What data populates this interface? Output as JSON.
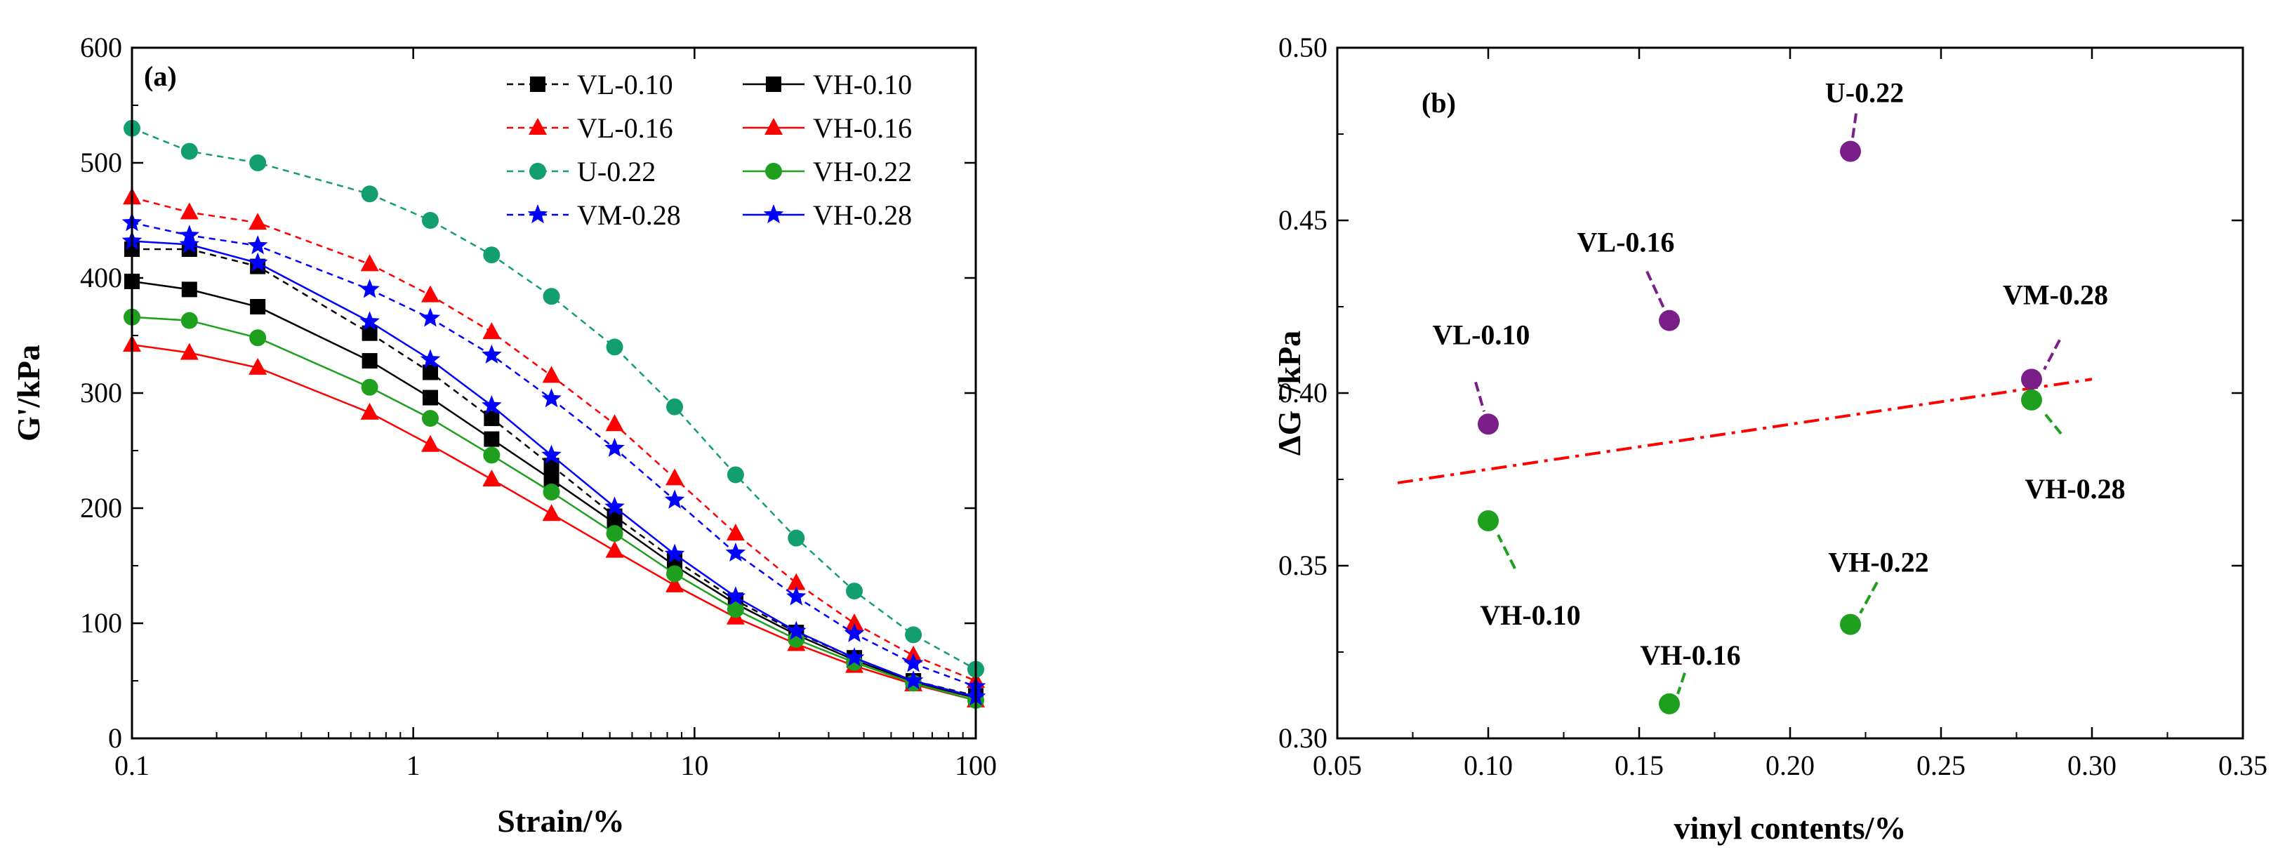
{
  "chart_data": [
    {
      "type": "line",
      "panel_label": "(a)",
      "xscale": "log",
      "xlabel": "Strain/%",
      "ylabel": "G'/kPa",
      "xlim": [
        0.1,
        100
      ],
      "ylim": [
        0,
        600
      ],
      "xticks": [
        0.1,
        1,
        10,
        100
      ],
      "xtick_labels": [
        "0.1",
        "1",
        "10",
        "100"
      ],
      "yticks": [
        0,
        100,
        200,
        300,
        400,
        500,
        600
      ],
      "ytick_labels": [
        "0",
        "100",
        "200",
        "300",
        "400",
        "500",
        "600"
      ],
      "x": [
        0.1,
        0.16,
        0.28,
        0.7,
        1.15,
        1.9,
        3.1,
        5.2,
        8.5,
        14,
        23,
        37,
        60,
        100
      ],
      "series": [
        {
          "name": "VL-0.10",
          "color": "#000000",
          "dash": "dashed",
          "marker": "square",
          "values": [
            425,
            425,
            410,
            352,
            318,
            278,
            237,
            193,
            155,
            120,
            92,
            70,
            50,
            37
          ]
        },
        {
          "name": "VH-0.10",
          "color": "#000000",
          "dash": "solid",
          "marker": "square",
          "values": [
            397,
            390,
            375,
            328,
            296,
            260,
            225,
            187,
            150,
            117,
            90,
            68,
            49,
            35
          ]
        },
        {
          "name": "VL-0.16",
          "color": "#ff0000",
          "dash": "dashed",
          "marker": "triangle",
          "values": [
            470,
            457,
            448,
            412,
            385,
            353,
            315,
            273,
            226,
            178,
            135,
            100,
            72,
            50
          ]
        },
        {
          "name": "VH-0.16",
          "color": "#ff0000",
          "dash": "solid",
          "marker": "triangle",
          "values": [
            342,
            335,
            322,
            283,
            255,
            225,
            195,
            163,
            133,
            105,
            82,
            63,
            47,
            33
          ]
        },
        {
          "name": "U-0.22",
          "color": "#129e6e",
          "dash": "dashed",
          "marker": "circle",
          "values": [
            530,
            510,
            500,
            473,
            450,
            420,
            384,
            340,
            288,
            229,
            174,
            128,
            90,
            60
          ]
        },
        {
          "name": "VH-0.22",
          "color": "#1ea01e",
          "dash": "solid",
          "marker": "circle",
          "values": [
            366,
            363,
            348,
            305,
            278,
            246,
            214,
            178,
            143,
            112,
            86,
            66,
            48,
            33
          ]
        },
        {
          "name": "VM-0.28",
          "color": "#0000ff",
          "dash": "dashed",
          "marker": "star",
          "values": [
            448,
            437,
            428,
            390,
            365,
            333,
            295,
            252,
            207,
            161,
            123,
            91,
            65,
            45
          ]
        },
        {
          "name": "VH-0.28",
          "color": "#0000ff",
          "dash": "solid",
          "marker": "star",
          "values": [
            432,
            429,
            413,
            362,
            329,
            289,
            246,
            201,
            160,
            123,
            93,
            70,
            50,
            36
          ]
        }
      ]
    },
    {
      "type": "scatter",
      "panel_label": "(b)",
      "xlabel": "vinyl contents/%",
      "ylabel": "ΔG '/kPa",
      "xlim": [
        0.05,
        0.35
      ],
      "ylim": [
        0.3,
        0.5
      ],
      "xticks": [
        0.05,
        0.1,
        0.15,
        0.2,
        0.25,
        0.3,
        0.35
      ],
      "xtick_labels": [
        "0.05",
        "0.10",
        "0.15",
        "0.20",
        "0.25",
        "0.30",
        "0.35"
      ],
      "yticks": [
        0.3,
        0.35,
        0.4,
        0.45,
        0.5
      ],
      "ytick_labels": [
        "0.30",
        "0.35",
        "0.40",
        "0.45",
        "0.50"
      ],
      "points": [
        {
          "label": "VL-0.10",
          "x": 0.1,
          "y": 0.391,
          "color": "#7a1f8a"
        },
        {
          "label": "VL-0.16",
          "x": 0.16,
          "y": 0.421,
          "color": "#7a1f8a"
        },
        {
          "label": "U-0.22",
          "x": 0.22,
          "y": 0.47,
          "color": "#7a1f8a"
        },
        {
          "label": "VM-0.28",
          "x": 0.28,
          "y": 0.404,
          "color": "#7a1f8a"
        },
        {
          "label": "VH-0.10",
          "x": 0.1,
          "y": 0.363,
          "color": "#1ea01e"
        },
        {
          "label": "VH-0.16",
          "x": 0.16,
          "y": 0.31,
          "color": "#1ea01e"
        },
        {
          "label": "VH-0.22",
          "x": 0.22,
          "y": 0.333,
          "color": "#1ea01e"
        },
        {
          "label": "VH-0.28",
          "x": 0.28,
          "y": 0.398,
          "color": "#1ea01e"
        }
      ],
      "fit_line": {
        "x": [
          0.07,
          0.3
        ],
        "y": [
          0.374,
          0.404
        ],
        "color": "#ff0000",
        "style": "dash-dot"
      }
    }
  ]
}
